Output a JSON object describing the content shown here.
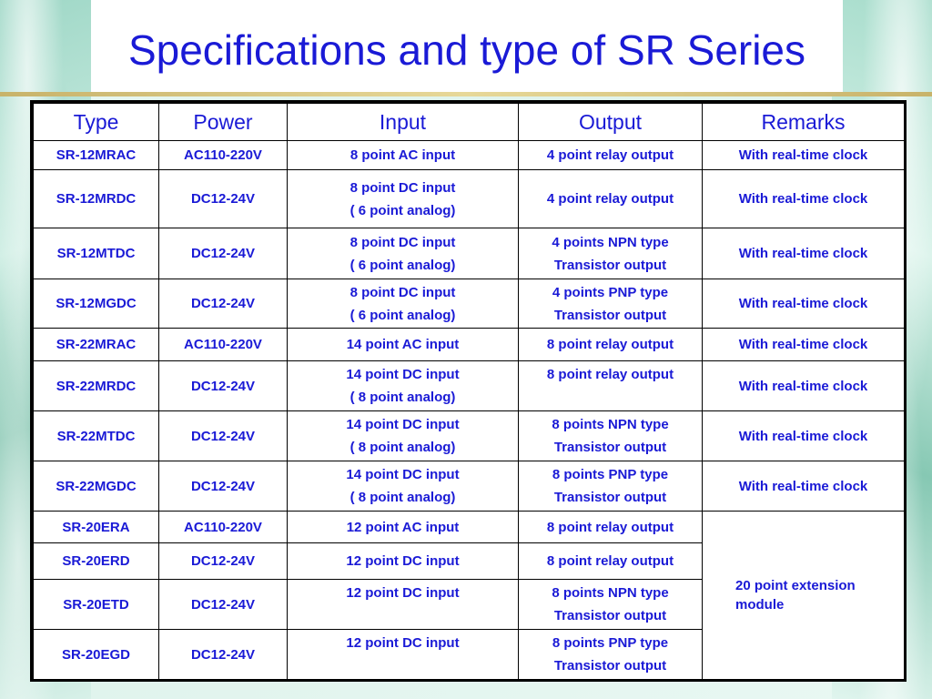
{
  "slide": {
    "title": "Specifications and type of SR Series"
  },
  "table": {
    "headers": [
      "Type",
      "Power",
      "Input",
      "Output",
      "Remarks"
    ],
    "rows": [
      {
        "type": "SR-12MRAC",
        "power": "AC110-220V",
        "input": [
          "8 point AC input"
        ],
        "output": [
          "4 point relay output"
        ],
        "remarks": "With real-time clock"
      },
      {
        "type": "SR-12MRDC",
        "power": "DC12-24V",
        "input": [
          "8 point DC input",
          "( 6 point analog)"
        ],
        "output": [
          "4 point relay output"
        ],
        "remarks": "With real-time clock"
      },
      {
        "type": "SR-12MTDC",
        "power": "DC12-24V",
        "input": [
          "8 point DC input",
          "( 6 point analog)"
        ],
        "output": [
          "4 points NPN type",
          "Transistor output"
        ],
        "remarks": "With real-time clock"
      },
      {
        "type": "SR-12MGDC",
        "power": "DC12-24V",
        "input": [
          "8 point DC input",
          "( 6 point analog)"
        ],
        "output": [
          "4 points PNP type",
          "Transistor output"
        ],
        "remarks": "With real-time clock"
      },
      {
        "type": "SR-22MRAC",
        "power": "AC110-220V",
        "input": [
          "14 point AC input"
        ],
        "output": [
          "8 point relay output"
        ],
        "remarks": "With real-time clock"
      },
      {
        "type": "SR-22MRDC",
        "power": "DC12-24V",
        "input": [
          "14 point DC input",
          "( 8 point analog)"
        ],
        "output": [
          "8 point relay output"
        ],
        "remarks": "With real-time clock"
      },
      {
        "type": "SR-22MTDC",
        "power": "DC12-24V",
        "input": [
          "14 point DC input",
          "( 8 point analog)"
        ],
        "output": [
          "8 points NPN type",
          "Transistor output"
        ],
        "remarks": "With real-time clock"
      },
      {
        "type": "SR-22MGDC",
        "power": "DC12-24V",
        "input": [
          "14 point DC input",
          "( 8 point analog)"
        ],
        "output": [
          "8 points PNP type",
          "Transistor output"
        ],
        "remarks": "With real-time clock"
      },
      {
        "type": "SR-20ERA",
        "power": "AC110-220V",
        "input": [
          "12 point AC input"
        ],
        "output": [
          "8 point relay output"
        ]
      },
      {
        "type": "SR-20ERD",
        "power": "DC12-24V",
        "input": [
          "12 point DC input"
        ],
        "output": [
          "8 point relay output"
        ]
      },
      {
        "type": "SR-20ETD",
        "power": "DC12-24V",
        "input": [
          "12 point DC input"
        ],
        "output": [
          "8 points NPN type",
          "Transistor output"
        ]
      },
      {
        "type": "SR-20EGD",
        "power": "DC12-24V",
        "input": [
          "12 point DC input"
        ],
        "output": [
          "8 points PNP type",
          "Transistor output"
        ]
      }
    ],
    "extension_remark": [
      "20 point extension",
      "module"
    ]
  }
}
